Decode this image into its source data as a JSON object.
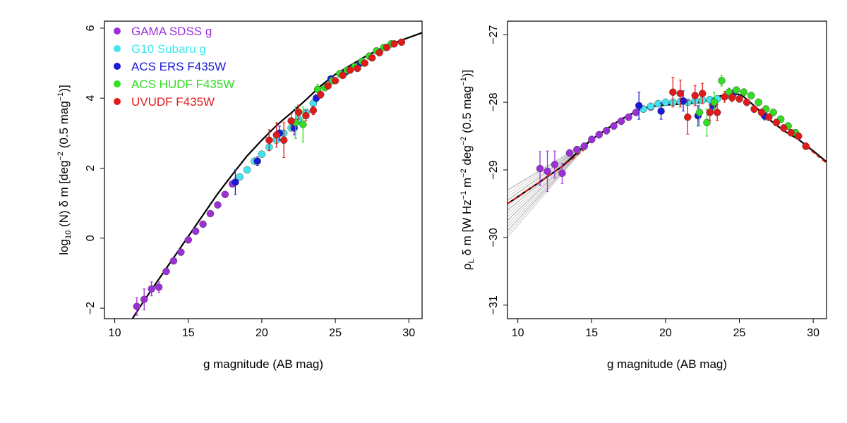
{
  "chart_data": [
    {
      "type": "scatter",
      "title": "",
      "xlabel": "g magnitude (AB mag)",
      "ylabel_parts": {
        "pre": "log",
        "sub": "10",
        "mid": " (N) δ m [deg",
        "sup1": "−2",
        "post1": " (0.5 mag",
        "sup2": "−1",
        "post2": ")]"
      },
      "xlim": [
        9.3,
        30.9
      ],
      "ylim": [
        -2.3,
        6.2
      ],
      "xticks": [
        "10",
        "15",
        "20",
        "25",
        "30"
      ],
      "yticks": [
        "−2",
        "0",
        "2",
        "4",
        "6"
      ],
      "xtick_values": [
        10,
        15,
        20,
        25,
        30
      ],
      "ytick_values": [
        -2,
        0,
        2,
        4,
        6
      ],
      "legend": [
        {
          "name": "GAMA SDSS g",
          "color": "#9b30d9"
        },
        {
          "name": "G10 Subaru g",
          "color": "#3fe6f0"
        },
        {
          "name": "ACS ERS F435W",
          "color": "#1a1ad6"
        },
        {
          "name": "ACS HUDF F435W",
          "color": "#33dd22"
        },
        {
          "name": "UVUDF F435W",
          "color": "#e01a1a"
        }
      ],
      "fit_curve": {
        "x": [
          11.2,
          12,
          13,
          14,
          15,
          16,
          17,
          18,
          19,
          20,
          21,
          22,
          23,
          24,
          25,
          26,
          27,
          28,
          29,
          30.9
        ],
        "y": [
          -2.3,
          -1.78,
          -1.17,
          -0.56,
          0.05,
          0.66,
          1.27,
          1.82,
          2.35,
          2.8,
          3.22,
          3.58,
          3.95,
          4.35,
          4.68,
          4.93,
          5.18,
          5.4,
          5.58,
          5.87
        ]
      },
      "series": [
        {
          "name": "GAMA SDSS g",
          "color": "#9b30d9",
          "x": [
            11.5,
            12.0,
            12.5,
            13.0,
            13.5,
            14.0,
            14.5,
            15.0,
            15.5,
            16.0,
            16.5,
            17.0,
            17.5,
            18.0
          ],
          "y": [
            -1.95,
            -1.75,
            -1.45,
            -1.4,
            -0.95,
            -0.65,
            -0.4,
            -0.05,
            0.2,
            0.4,
            0.7,
            0.95,
            1.25,
            1.55
          ],
          "err": [
            0.25,
            0.3,
            0.2,
            0.15,
            0.05,
            0.05,
            0.05,
            0.05,
            0.05,
            0.05,
            0.05,
            0.05,
            0.05,
            0.05
          ]
        },
        {
          "name": "G10 Subaru g",
          "color": "#3fe6f0",
          "x": [
            18.5,
            19.0,
            19.5,
            20.0,
            20.5,
            21.0,
            21.5,
            22.0,
            22.5,
            23.0,
            23.5
          ],
          "y": [
            1.75,
            1.95,
            2.2,
            2.4,
            2.6,
            2.8,
            3.0,
            3.15,
            3.4,
            3.6,
            3.85
          ],
          "err": [
            0.05,
            0.05,
            0.05,
            0.05,
            0.05,
            0.05,
            0.05,
            0.05,
            0.05,
            0.05,
            0.05
          ]
        },
        {
          "name": "ACS ERS F435W",
          "color": "#1a1ad6",
          "x": [
            18.2,
            19.7,
            21.2,
            22.2,
            23.7,
            24.7,
            25.7,
            26.7
          ],
          "y": [
            1.6,
            2.2,
            3.0,
            3.15,
            4.0,
            4.55,
            4.75,
            5.0
          ],
          "err": [
            0.35,
            0.12,
            0.2,
            0.2,
            0.1,
            0.08,
            0.06,
            0.06
          ]
        },
        {
          "name": "ACS HUDF F435W",
          "color": "#33dd22",
          "x": [
            22.3,
            22.8,
            23.8,
            24.3,
            24.8,
            25.3,
            25.8,
            26.3,
            26.8,
            27.3,
            27.8,
            28.3,
            28.8
          ],
          "y": [
            3.3,
            3.25,
            4.25,
            4.3,
            4.5,
            4.7,
            4.8,
            4.9,
            5.05,
            5.2,
            5.35,
            5.45,
            5.55
          ],
          "err": [
            0.45,
            0.5,
            0.15,
            0.08,
            0.06,
            0.05,
            0.05,
            0.05,
            0.05,
            0.05,
            0.05,
            0.05,
            0.05
          ]
        },
        {
          "name": "UVUDF F435W",
          "color": "#e01a1a",
          "x": [
            20.5,
            21.0,
            21.5,
            22.0,
            22.5,
            23.0,
            23.5,
            24.0,
            24.5,
            25.0,
            25.5,
            26.0,
            26.5,
            27.0,
            27.5,
            28.0,
            28.5,
            29.0,
            29.5
          ],
          "y": [
            2.8,
            2.95,
            2.8,
            3.35,
            3.6,
            3.5,
            3.65,
            4.1,
            4.35,
            4.5,
            4.65,
            4.8,
            4.85,
            5.0,
            5.15,
            5.3,
            5.45,
            5.55,
            5.6
          ],
          "err": [
            0.3,
            0.35,
            0.5,
            0.2,
            0.2,
            0.15,
            0.12,
            0.1,
            0.08,
            0.06,
            0.05,
            0.05,
            0.05,
            0.05,
            0.05,
            0.05,
            0.05,
            0.05,
            0.05
          ]
        }
      ]
    },
    {
      "type": "scatter",
      "title": "",
      "xlabel": "g magnitude (AB mag)",
      "ylabel_parts": {
        "pre": "ρ",
        "sub": "L",
        "mid": " δ m [W Hz",
        "sup1": "−1",
        "post1": " m",
        "sup2": "−2",
        "post2": " deg",
        "sup3": "−2",
        "post3": " (0.5 mag",
        "sup4": "−1",
        "post4": ")]"
      },
      "xlim": [
        9.3,
        30.9
      ],
      "ylim": [
        -31.2,
        -26.8
      ],
      "xticks": [
        "10",
        "15",
        "20",
        "25",
        "30"
      ],
      "yticks": [
        "−31",
        "−30",
        "−29",
        "−28",
        "−27"
      ],
      "xtick_values": [
        10,
        15,
        20,
        25,
        30
      ],
      "ytick_values": [
        -31,
        -30,
        -29,
        -28,
        -27
      ],
      "fit_curve": {
        "x": [
          9.3,
          11,
          13,
          15,
          17,
          18.5,
          19.5,
          20.5,
          21.5,
          22.5,
          23.5,
          24.5,
          25.2,
          26,
          27,
          28,
          29,
          30,
          30.9
        ],
        "y": [
          -29.5,
          -29.25,
          -28.95,
          -28.55,
          -28.25,
          -28.08,
          -28.05,
          -28.03,
          -28.02,
          -28.0,
          -27.92,
          -27.86,
          -27.9,
          -28.05,
          -28.25,
          -28.42,
          -28.55,
          -28.72,
          -28.88
        ]
      },
      "extrapolation_red": {
        "x": [
          9.3,
          11,
          13,
          14.5
        ],
        "y": [
          -29.5,
          -29.25,
          -28.95,
          -28.7
        ]
      },
      "extrapolation_red_faint": {
        "x": [
          29.5,
          30.9
        ],
        "y": [
          -28.65,
          -28.9
        ]
      },
      "uncertainty_fan": {
        "pivot_x": 15,
        "pivot_y": -28.55,
        "x_end": 9.3,
        "y_end_values": [
          -29.3,
          -29.35,
          -29.4,
          -29.45,
          -29.5,
          -29.55,
          -29.6,
          -29.65,
          -29.7,
          -29.75,
          -29.8,
          -29.85,
          -29.9,
          -29.95,
          -30.0
        ]
      },
      "series": [
        {
          "name": "GAMA SDSS g",
          "color": "#9b30d9",
          "x": [
            11.5,
            12.0,
            12.5,
            13.0,
            13.5,
            14.0,
            14.5,
            15.0,
            15.5,
            16.0,
            16.5,
            17.0,
            17.5,
            18.0,
            18.5,
            19.0
          ],
          "y": [
            -28.98,
            -29.02,
            -28.92,
            -29.05,
            -28.75,
            -28.7,
            -28.65,
            -28.55,
            -28.48,
            -28.42,
            -28.35,
            -28.28,
            -28.22,
            -28.15,
            -28.1,
            -28.07
          ],
          "err": [
            0.25,
            0.3,
            0.2,
            0.15,
            0.05,
            0.05,
            0.05,
            0.05,
            0.05,
            0.05,
            0.05,
            0.05,
            0.05,
            0.05,
            0.05,
            0.05
          ]
        },
        {
          "name": "G10 Subaru g",
          "color": "#3fe6f0",
          "x": [
            18.5,
            19.0,
            19.5,
            20.0,
            20.5,
            21.0,
            21.5,
            22.0,
            22.5,
            23.0,
            23.5
          ],
          "y": [
            -28.1,
            -28.06,
            -28.02,
            -28.0,
            -28.0,
            -27.99,
            -28.0,
            -27.98,
            -27.97,
            -27.96,
            -27.95
          ],
          "err": [
            0.05,
            0.05,
            0.05,
            0.05,
            0.05,
            0.05,
            0.05,
            0.05,
            0.05,
            0.05,
            0.05
          ]
        },
        {
          "name": "ACS ERS F435W",
          "color": "#1a1ad6",
          "x": [
            18.2,
            19.7,
            21.2,
            22.2,
            23.2,
            24.7,
            26.7
          ],
          "y": [
            -28.05,
            -28.13,
            -27.98,
            -28.2,
            -28.05,
            -27.85,
            -28.2
          ],
          "err": [
            0.2,
            0.12,
            0.15,
            0.15,
            0.1,
            0.06,
            0.06
          ]
        },
        {
          "name": "ACS HUDF F435W",
          "color": "#33dd22",
          "x": [
            22.3,
            22.8,
            23.3,
            23.8,
            24.3,
            24.8,
            25.3,
            25.8,
            26.3,
            26.8,
            27.3,
            27.8,
            28.3,
            28.8
          ],
          "y": [
            -28.15,
            -28.3,
            -28.0,
            -27.68,
            -27.85,
            -27.82,
            -27.85,
            -27.9,
            -28.0,
            -28.1,
            -28.15,
            -28.25,
            -28.35,
            -28.45
          ],
          "err": [
            0.2,
            0.2,
            0.15,
            0.08,
            0.06,
            0.05,
            0.05,
            0.05,
            0.05,
            0.05,
            0.05,
            0.05,
            0.05,
            0.05
          ]
        },
        {
          "name": "UVUDF F435W",
          "color": "#e01a1a",
          "x": [
            20.5,
            21.0,
            21.5,
            22.0,
            22.5,
            23.0,
            23.5,
            24.0,
            24.5,
            25.0,
            25.5,
            26.0,
            26.5,
            27.0,
            27.5,
            28.0,
            28.5,
            29.0,
            29.5
          ],
          "y": [
            -27.85,
            -27.87,
            -28.22,
            -27.9,
            -27.87,
            -28.15,
            -28.15,
            -27.92,
            -27.93,
            -27.95,
            -28.0,
            -28.1,
            -28.15,
            -28.22,
            -28.3,
            -28.38,
            -28.45,
            -28.5,
            -28.65
          ],
          "err": [
            0.22,
            0.2,
            0.25,
            0.15,
            0.15,
            0.12,
            0.12,
            0.08,
            0.06,
            0.05,
            0.05,
            0.05,
            0.05,
            0.05,
            0.05,
            0.05,
            0.05,
            0.05,
            0.05
          ]
        }
      ]
    }
  ]
}
